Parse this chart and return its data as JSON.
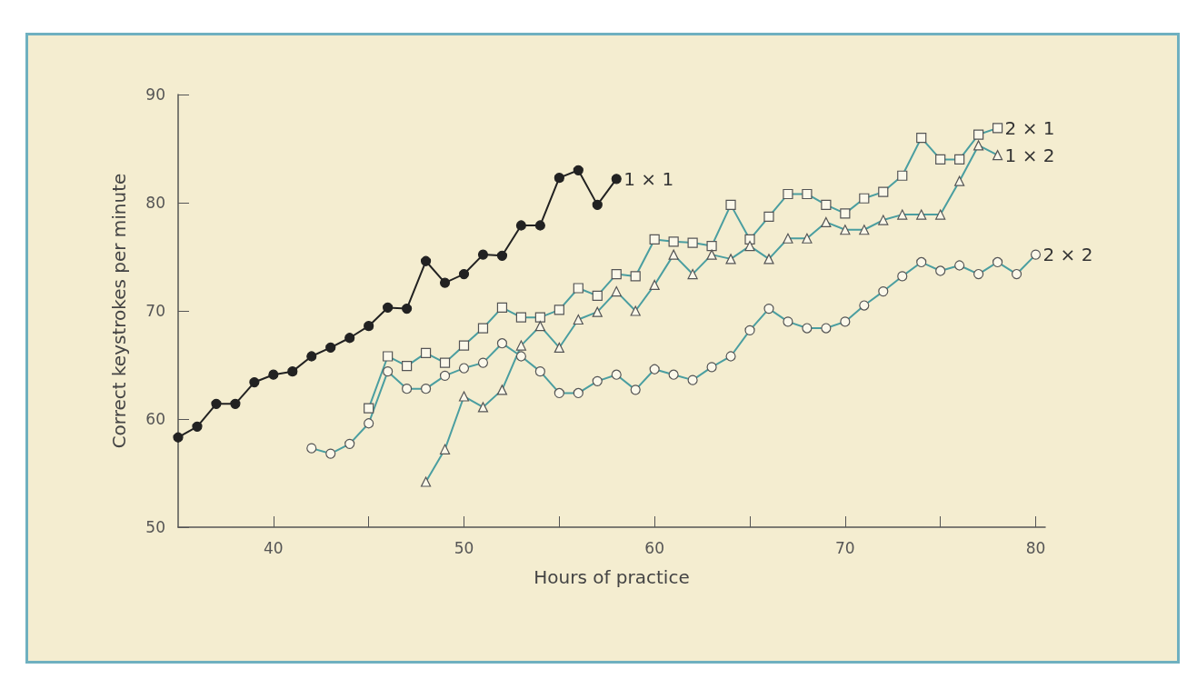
{
  "chart_data": {
    "type": "line",
    "xlabel": "Hours of practice",
    "ylabel": "Correct keystrokes per minute",
    "xlim": [
      35,
      80.5
    ],
    "ylim": [
      50,
      90
    ],
    "xticks": [
      40,
      {
        "value": 45,
        "label": null
      },
      50,
      {
        "value": 55,
        "label": null
      },
      60,
      {
        "value": 65,
        "label": null
      },
      70,
      {
        "value": 75,
        "label": null
      },
      80
    ],
    "yticks": [
      50,
      60,
      70,
      80,
      90
    ],
    "grid": false,
    "legend": false,
    "line_style": "solid",
    "series": [
      {
        "name": "1 × 1",
        "color": "#222222",
        "marker": "circle",
        "x": [
          35,
          36,
          37,
          38,
          39,
          40,
          41,
          42,
          43,
          44,
          45,
          46,
          47,
          48,
          49,
          50,
          51,
          52,
          53,
          54,
          55,
          56,
          57,
          58
        ],
        "values": [
          58.3,
          59.3,
          61.4,
          61.4,
          63.4,
          64.1,
          64.4,
          65.8,
          66.6,
          67.5,
          68.6,
          70.3,
          70.2,
          74.6,
          72.6,
          73.4,
          75.2,
          75.1,
          77.9,
          77.9,
          82.3,
          83.0,
          79.8,
          82.2
        ]
      },
      {
        "name": "2 × 1",
        "color": "#4a9ea0",
        "marker": "square",
        "x": [
          45,
          46,
          47,
          48,
          49,
          50,
          51,
          52,
          53,
          54,
          55,
          56,
          57,
          58,
          59,
          60,
          61,
          62,
          63,
          64,
          65,
          66,
          67,
          68,
          69,
          70,
          71,
          72,
          73,
          74,
          75,
          76,
          77,
          78
        ],
        "values": [
          61.0,
          65.8,
          64.9,
          66.1,
          65.2,
          66.8,
          68.4,
          70.3,
          69.4,
          69.4,
          70.1,
          72.1,
          71.4,
          73.4,
          73.2,
          76.6,
          76.4,
          76.3,
          76.0,
          79.8,
          76.6,
          78.7,
          80.8,
          80.8,
          79.8,
          79.0,
          80.4,
          81.0,
          82.5,
          86.0,
          84.0,
          84.0,
          86.3,
          86.9
        ]
      },
      {
        "name": "1 × 2",
        "color": "#4a9ea0",
        "marker": "triangle",
        "x": [
          48,
          49,
          50,
          51,
          52,
          53,
          54,
          55,
          56,
          57,
          58,
          59,
          60,
          61,
          62,
          63,
          64,
          65,
          66,
          67,
          68,
          69,
          70,
          71,
          72,
          73,
          74,
          75,
          76,
          77,
          78
        ],
        "values": [
          54.2,
          57.2,
          62.1,
          61.1,
          62.7,
          66.8,
          68.6,
          66.6,
          69.2,
          69.9,
          71.8,
          70.0,
          72.4,
          75.2,
          73.4,
          75.2,
          74.8,
          76.0,
          74.8,
          76.7,
          76.7,
          78.2,
          77.5,
          77.5,
          78.4,
          78.9,
          78.9,
          78.9,
          82.0,
          85.3,
          84.4
        ]
      },
      {
        "name": "2 × 2",
        "color": "#4a9ea0",
        "marker": "circle",
        "x": [
          42,
          43,
          44,
          45,
          46,
          47,
          48,
          49,
          50,
          51,
          52,
          53,
          54,
          55,
          56,
          57,
          58,
          59,
          60,
          61,
          62,
          63,
          64,
          65,
          66,
          67,
          68,
          69,
          70,
          71,
          72,
          73,
          74,
          75,
          76,
          77,
          78,
          79,
          80
        ],
        "values": [
          57.3,
          56.8,
          57.7,
          59.6,
          64.4,
          62.8,
          62.8,
          64.0,
          64.7,
          65.2,
          67.0,
          65.8,
          64.4,
          62.4,
          62.4,
          63.5,
          64.1,
          62.7,
          64.6,
          64.1,
          63.6,
          64.8,
          65.8,
          68.2,
          70.2,
          69.0,
          68.4,
          68.4,
          69.0,
          70.5,
          71.8,
          73.2,
          74.5,
          73.7,
          74.2,
          73.4,
          74.5,
          73.4,
          75.2
        ]
      }
    ]
  }
}
